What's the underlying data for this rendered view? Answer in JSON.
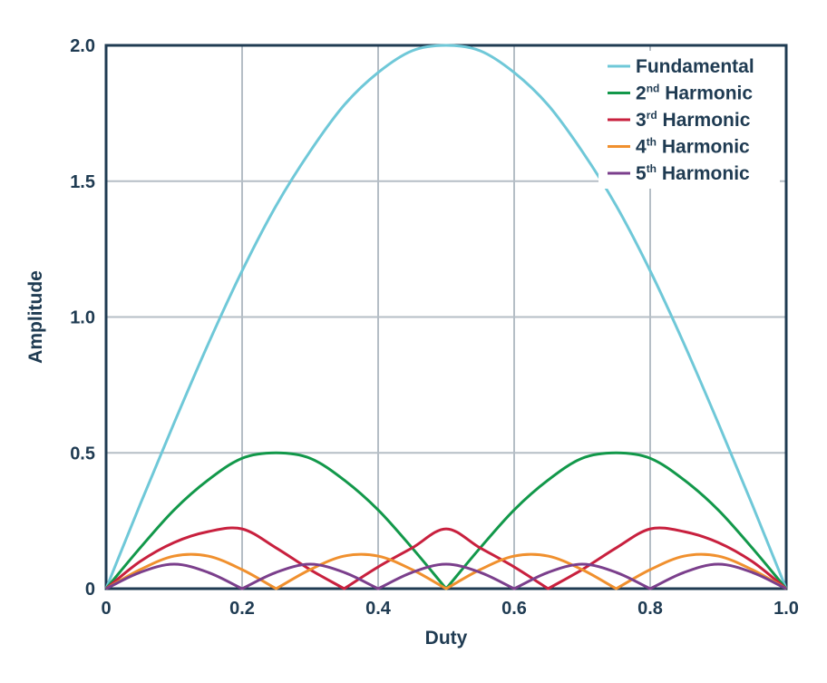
{
  "chart_data": {
    "type": "line",
    "xlabel": "Duty",
    "ylabel": "Amplitude",
    "xlim": [
      0,
      1
    ],
    "ylim": [
      0,
      2
    ],
    "x_ticks": [
      0,
      0.2,
      0.4,
      0.6,
      0.8,
      1.0
    ],
    "x_tick_labels": [
      "0",
      "0.2",
      "0.4",
      "0.6",
      "0.8",
      "1.0"
    ],
    "y_ticks": [
      0,
      0.5,
      1.0,
      1.5,
      2.0
    ],
    "y_tick_labels": [
      "0",
      "0.5",
      "1.0",
      "1.5",
      "2.0"
    ],
    "grid": true,
    "legend_position": "top-right",
    "x": [
      0,
      0.05,
      0.1,
      0.15,
      0.2,
      0.25,
      0.3,
      0.35,
      0.4,
      0.45,
      0.5,
      0.55,
      0.6,
      0.65,
      0.7,
      0.75,
      0.8,
      0.85,
      0.9,
      0.95,
      1.0
    ],
    "series": [
      {
        "name": "Fundamental",
        "legend_prefix": "Fundamental",
        "legend_sup": "",
        "legend_suffix": "",
        "color": "#6fc8d8",
        "values": [
          0,
          0.31,
          0.61,
          0.9,
          1.17,
          1.41,
          1.61,
          1.78,
          1.9,
          1.98,
          2.0,
          1.98,
          1.9,
          1.78,
          1.61,
          1.41,
          1.17,
          0.9,
          0.61,
          0.31,
          0
        ]
      },
      {
        "name": "2nd Harmonic",
        "legend_prefix": "2",
        "legend_sup": "nd",
        "legend_suffix": " Harmonic",
        "color": "#12984a",
        "values": [
          0,
          0.15,
          0.29,
          0.4,
          0.48,
          0.5,
          0.48,
          0.4,
          0.29,
          0.15,
          0,
          0.15,
          0.29,
          0.4,
          0.48,
          0.5,
          0.48,
          0.4,
          0.29,
          0.15,
          0
        ]
      },
      {
        "name": "3rd Harmonic",
        "legend_prefix": "3",
        "legend_sup": "rd",
        "legend_suffix": " Harmonic",
        "color": "#c8203e",
        "values": [
          0,
          0.1,
          0.17,
          0.21,
          0.22,
          0.15,
          0.07,
          0,
          0.08,
          0.15,
          0.22,
          0.15,
          0.08,
          0,
          0.07,
          0.15,
          0.22,
          0.21,
          0.17,
          0.1,
          0
        ]
      },
      {
        "name": "4th Harmonic",
        "legend_prefix": "4",
        "legend_sup": "th",
        "legend_suffix": " Harmonic",
        "color": "#f0902e",
        "values": [
          0,
          0.07,
          0.12,
          0.12,
          0.07,
          0,
          0.07,
          0.12,
          0.12,
          0.07,
          0,
          0.07,
          0.12,
          0.12,
          0.07,
          0,
          0.07,
          0.12,
          0.12,
          0.07,
          0
        ]
      },
      {
        "name": "5th Harmonic",
        "legend_prefix": "5",
        "legend_sup": "th",
        "legend_suffix": " Harmonic",
        "color": "#7b3f8c",
        "values": [
          0,
          0.06,
          0.09,
          0.06,
          0,
          0.06,
          0.09,
          0.06,
          0,
          0.06,
          0.09,
          0.06,
          0,
          0.06,
          0.09,
          0.06,
          0,
          0.06,
          0.09,
          0.06,
          0
        ]
      }
    ]
  }
}
